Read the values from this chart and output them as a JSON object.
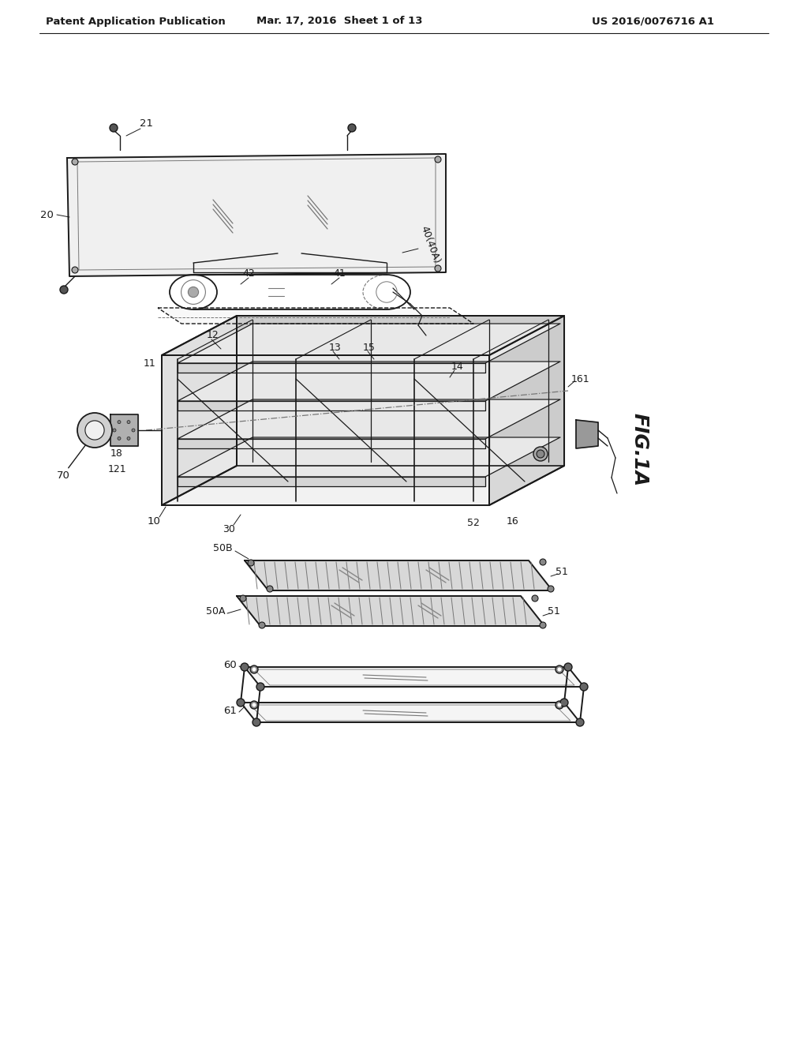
{
  "bg_color": "#ffffff",
  "lc": "#1a1a1a",
  "gc": "#777777",
  "header_left": "Patent Application Publication",
  "header_mid": "Mar. 17, 2016  Sheet 1 of 13",
  "header_right": "US 2016/0076716 A1",
  "fig_label": "FIG.1A"
}
